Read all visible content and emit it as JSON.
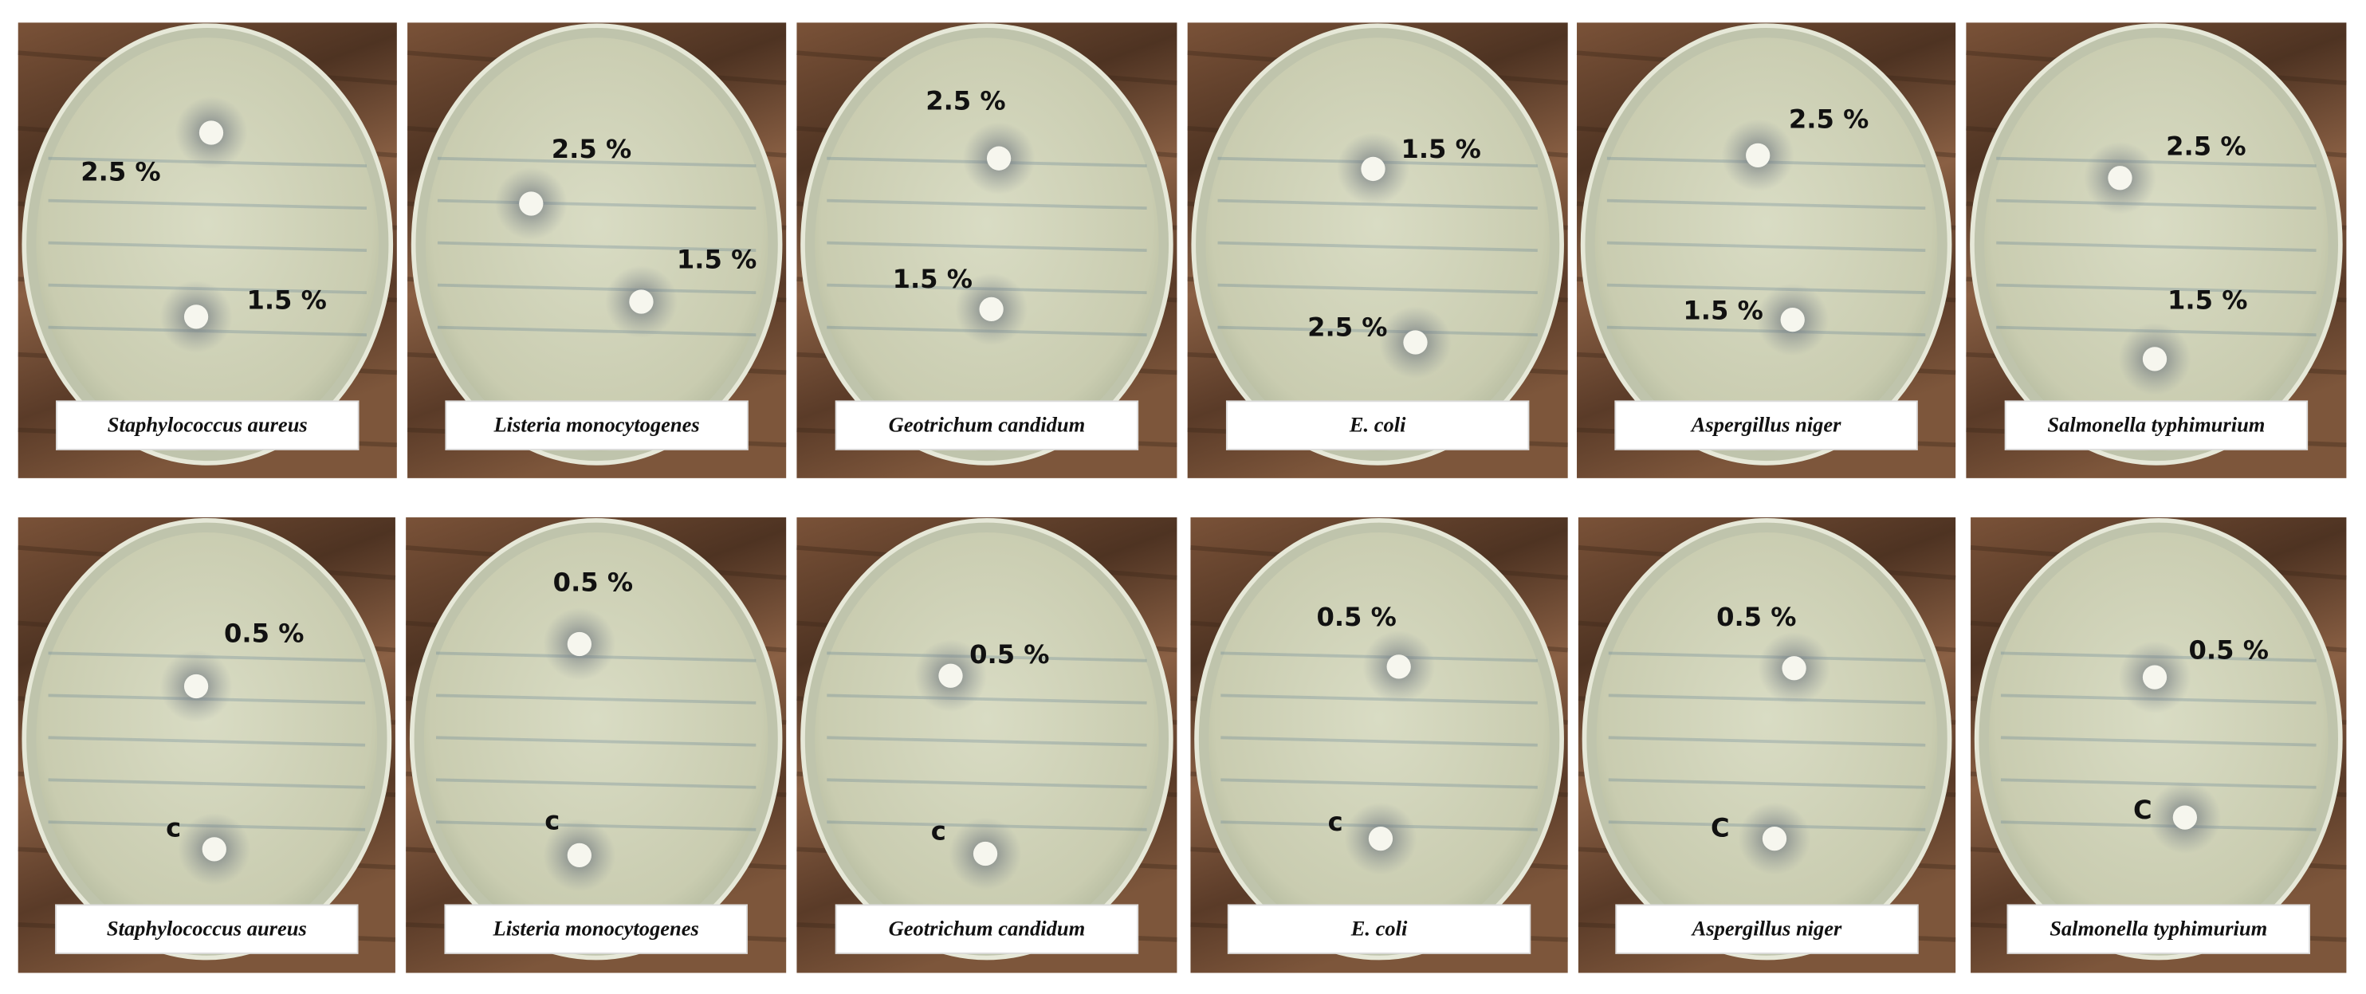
{
  "panels": [
    {
      "organism": "Staphylococcus aureus",
      "wells": [
        {
          "label": "2.5 %"
        },
        {
          "label": "1.5 %"
        }
      ]
    },
    {
      "organism": "Listeria monocytogenes",
      "wells": [
        {
          "label": "2.5 %"
        },
        {
          "label": "1.5 %"
        }
      ]
    },
    {
      "organism": "Geotrichum candidum",
      "wells": [
        {
          "label": "2.5 %"
        },
        {
          "label": "1.5 %"
        }
      ]
    },
    {
      "organism": "E. coli",
      "wells": [
        {
          "label": "1.5 %"
        },
        {
          "label": "2.5 %"
        }
      ]
    },
    {
      "organism": "Aspergillus niger",
      "wells": [
        {
          "label": "2.5 %"
        },
        {
          "label": "1.5 %"
        }
      ]
    },
    {
      "organism": "Salmonella typhimurium",
      "wells": [
        {
          "label": "2.5 %"
        },
        {
          "label": "1.5 %"
        }
      ]
    },
    {
      "organism": "Staphylococcus aureus",
      "wells": [
        {
          "label": "0.5 %"
        },
        {
          "label": "c"
        }
      ]
    },
    {
      "organism": "Listeria monocytogenes",
      "wells": [
        {
          "label": "0.5 %"
        },
        {
          "label": "c"
        }
      ]
    },
    {
      "organism": "Geotrichum candidum",
      "wells": [
        {
          "label": "0.5 %"
        },
        {
          "label": "c"
        }
      ]
    },
    {
      "organism": "E. coli",
      "wells": [
        {
          "label": "0.5 %"
        },
        {
          "label": "c"
        }
      ]
    },
    {
      "organism": "Aspergillus niger",
      "wells": [
        {
          "label": "0.5 %"
        },
        {
          "label": "C"
        }
      ]
    },
    {
      "organism": "Salmonella typhimurium",
      "wells": [
        {
          "label": "0.5 %"
        },
        {
          "label": "C"
        }
      ]
    }
  ]
}
